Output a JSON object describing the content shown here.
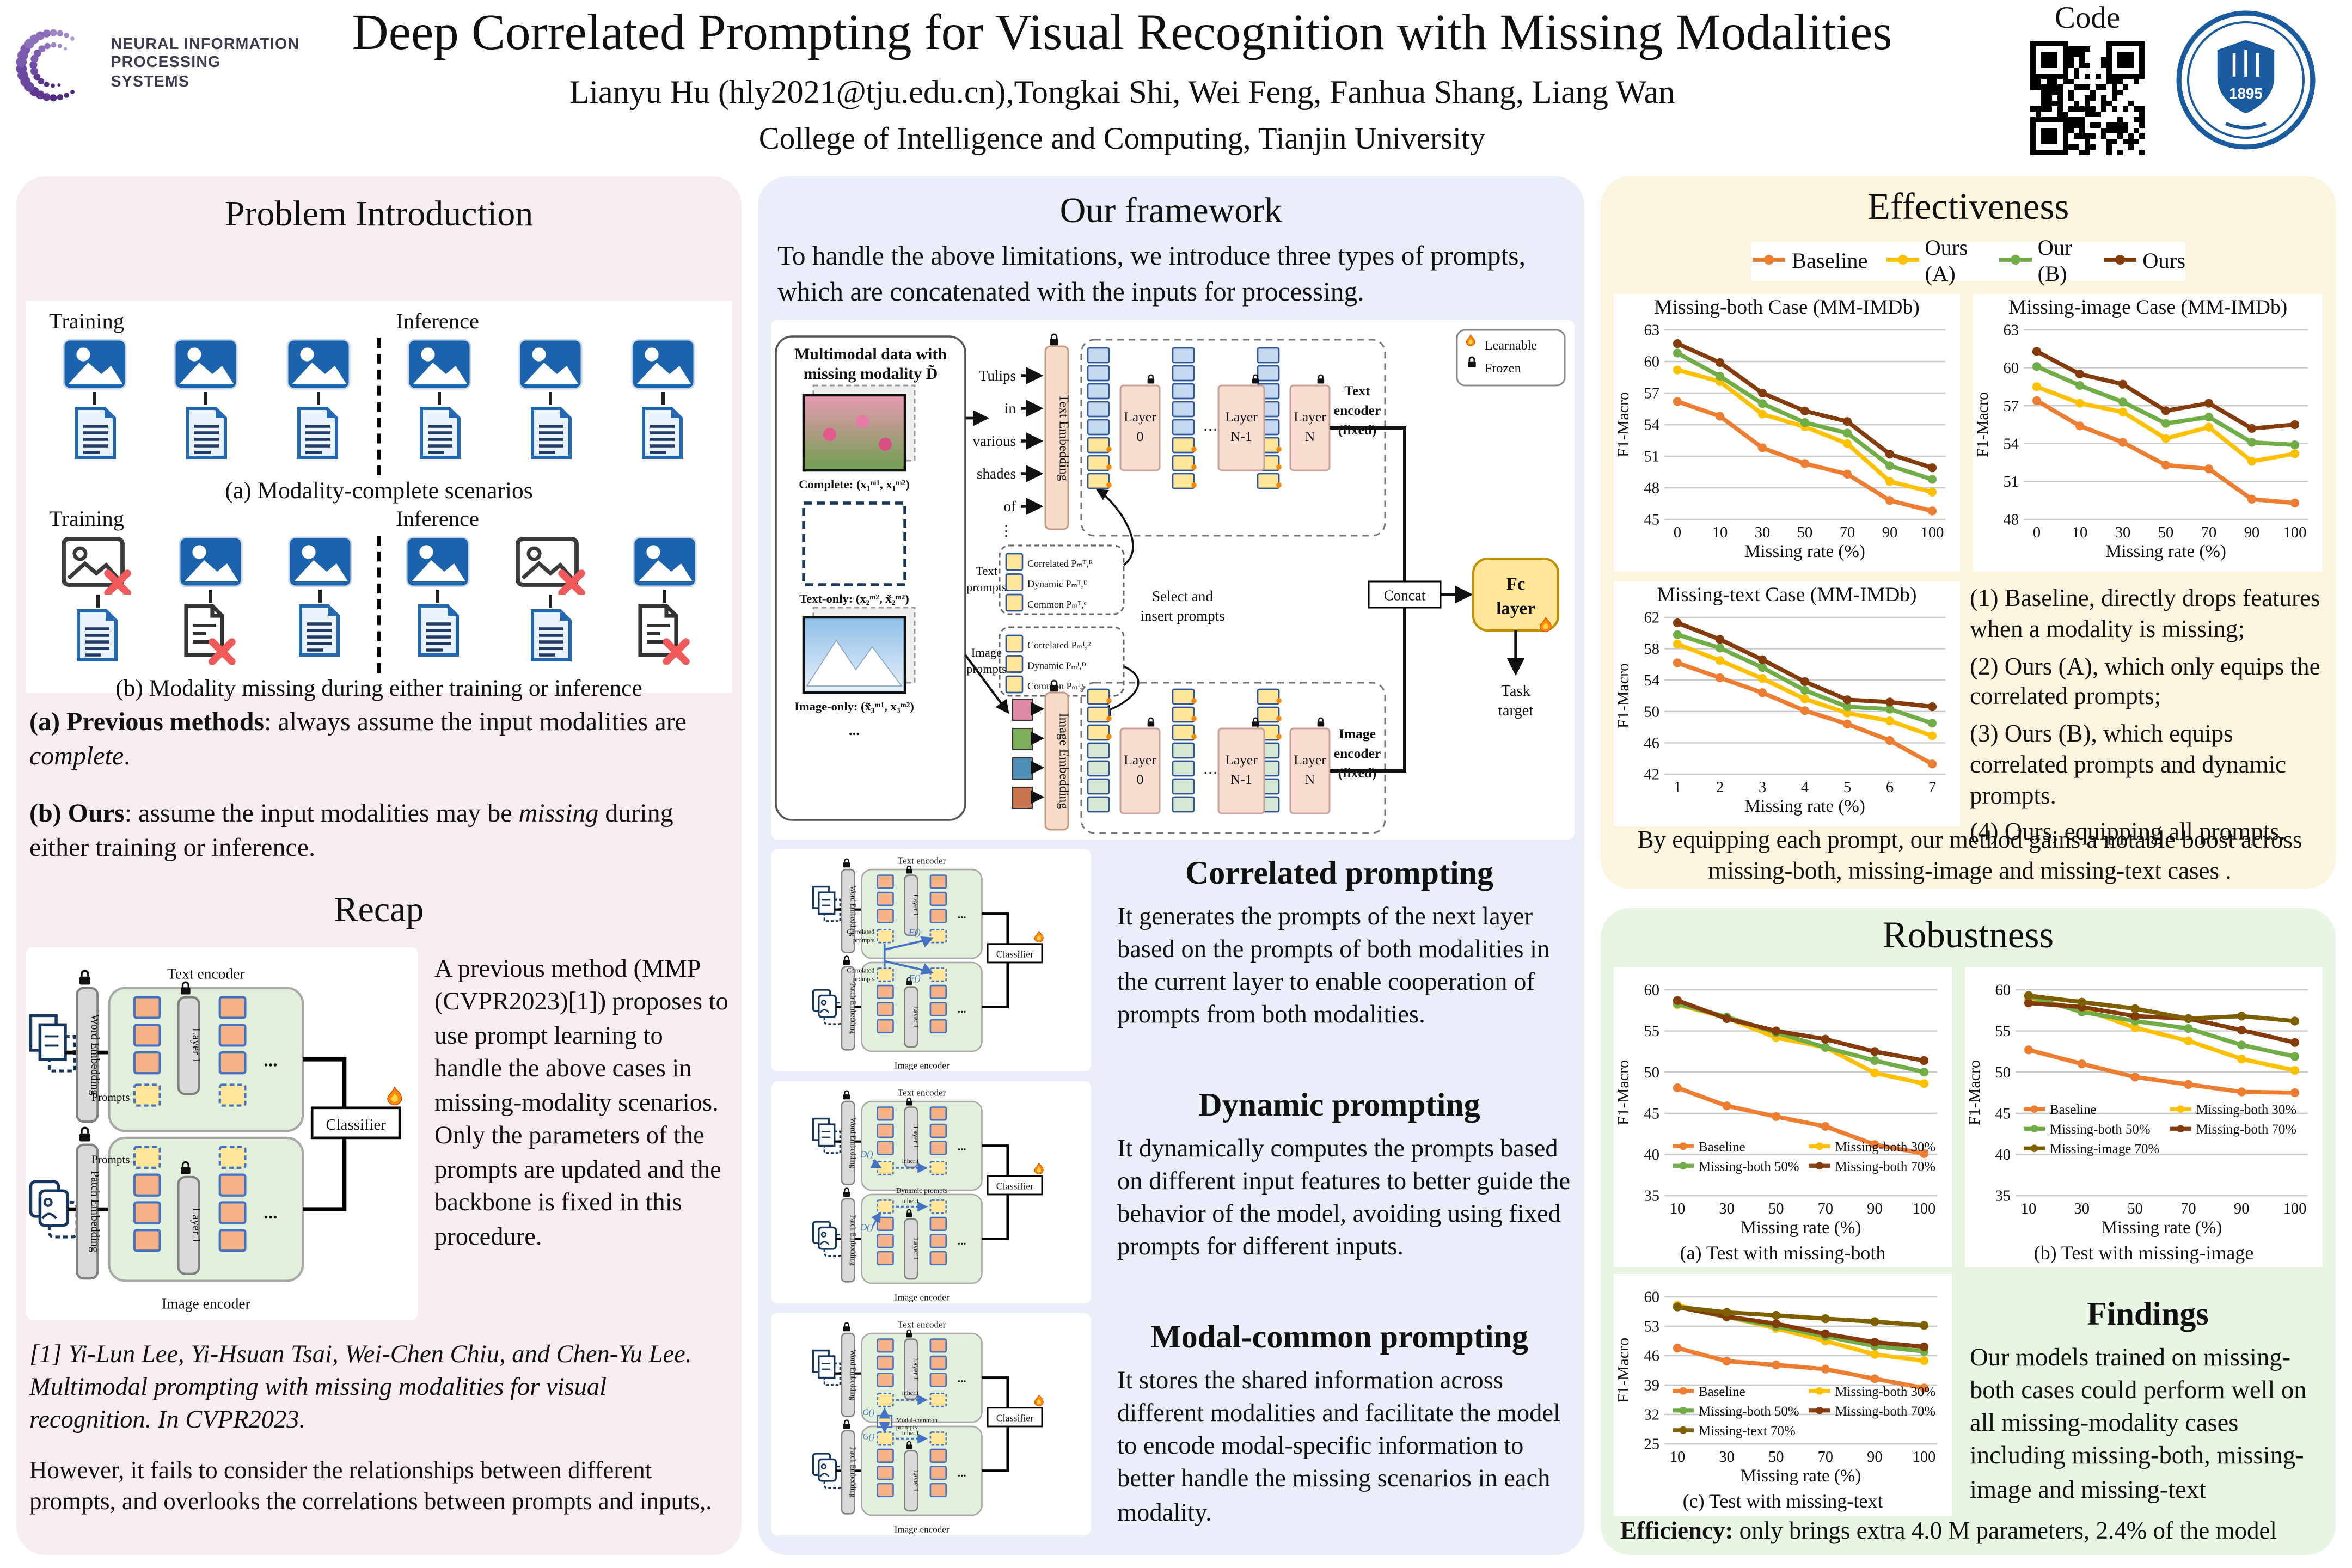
{
  "header": {
    "conference_logo": {
      "line1": "NEURAL INFORMATION",
      "line2": "PROCESSING SYSTEMS"
    },
    "title": "Deep Correlated Prompting for Visual Recognition with Missing Modalities",
    "authors": "Lianyu Hu (hly2021@tju.edu.cn),Tongkai Shi, Wei Feng, Fanhua Shang, Liang Wan",
    "affiliation": "College of Intelligence and Computing, Tianjin University",
    "code_label": "Code",
    "seal_year": "1895"
  },
  "problem_intro": {
    "title": "Problem Introduction",
    "scenarios": [
      {
        "training_label": "Training",
        "inference_label": "Inference",
        "training": [
          {
            "image": "ok",
            "text": "ok"
          },
          {
            "image": "ok",
            "text": "ok"
          },
          {
            "image": "ok",
            "text": "ok"
          }
        ],
        "inference": [
          {
            "image": "ok",
            "text": "ok"
          },
          {
            "image": "ok",
            "text": "ok"
          },
          {
            "image": "ok",
            "text": "ok"
          }
        ],
        "caption": "(a) Modality-complete scenarios"
      },
      {
        "training_label": "Training",
        "inference_label": "Inference",
        "training": [
          {
            "image": "missing",
            "text": "ok"
          },
          {
            "image": "ok",
            "text": "missing"
          },
          {
            "image": "ok",
            "text": "ok"
          }
        ],
        "inference": [
          {
            "image": "ok",
            "text": "ok"
          },
          {
            "image": "missing",
            "text": "ok"
          },
          {
            "image": "ok",
            "text": "missing"
          }
        ],
        "caption": "(b) Modality missing during either training or inference"
      }
    ],
    "point_a": {
      "bold": "(a) Previous methods",
      "mid": ": always assume the input modalities are ",
      "italic": "complete",
      "end": "."
    },
    "point_b": {
      "bold": "(b) Ours",
      "mid": ": assume the input modalities may be ",
      "italic": "missing",
      "end": " during either training or inference."
    },
    "recap_title": "Recap",
    "recap_text": "A previous method (MMP (CVPR2023)[1]) proposes to use prompt learning to handle the above cases in missing-modality scenarios. Only the parameters of the prompts are updated and the backbone is fixed in this procedure.",
    "reference": "[1] Yi-Lun Lee, Yi-Hsuan Tsai, Wei-Chen Chiu, and Chen-Yu Lee. Multimodal prompting with missing modalities for visual recognition. In CVPR2023.",
    "however": "However, it fails to consider the relationships between different prompts, and overlooks the correlations between prompts and inputs,."
  },
  "framework": {
    "title": "Our framework",
    "intro": "To handle the above limitations, we introduce three types of prompts, which are concatenated with the inputs for processing.",
    "diagram": {
      "multimodal_1": "Multimodal data with",
      "multimodal_2": "missing modality D̃",
      "complete": "Complete: (x₁ᵐ¹, x₁ᵐ²)",
      "text_only": "Text-only: (x₂ᵐ², x̃₂ᵐ²)",
      "image_only": "Image-only: (x̃₃ᵐ¹, x₃ᵐ²)",
      "dots": "...",
      "vdots": "⋮",
      "words": [
        "Tulips",
        "in",
        "various",
        "shades",
        "of"
      ],
      "text_embedding": "Text Embedding",
      "image_embedding": "Image Embedding",
      "layer_word": "Layer",
      "layer0": "0",
      "layerN1": "N-1",
      "layerN": "N",
      "text_enc": [
        "Text",
        "encoder",
        "(fixed)"
      ],
      "image_enc": [
        "Image",
        "encoder",
        "(fixed)"
      ],
      "text_prompts": [
        "Text",
        "prompts"
      ],
      "image_prompts": [
        "Image",
        "prompts"
      ],
      "prompt_rows_text": [
        "Correlated Pₘᵀ,ᴿ",
        "Dynamic Pₘᵀ,ᴰ",
        "Common Pₘᵀ,ᶜ"
      ],
      "prompt_rows_image": [
        "Correlated Pₘᴵ,ᴿ",
        "Dynamic Pₘᴵ,ᴰ",
        "Common Pₘᴵ,ᶜ"
      ],
      "select_1": "Select and",
      "select_2": "insert prompts",
      "concat": "Concat",
      "fc1": "Fc",
      "fc2": "layer",
      "task1": "Task",
      "task2": "target",
      "learnable": "Learnable",
      "frozen": "Frozen"
    },
    "mini": {
      "text_encoder": "Text encoder",
      "image_encoder": "Image encoder",
      "word_embedding": "Word Embedding",
      "patch_embedding": "Patch Embedding",
      "layer1": "Layer 1",
      "classifier": "Classifier",
      "prompts": "Prompts",
      "correlated_1": "Correlated",
      "correlated_2": "prompts",
      "dynamic_label": "Dynamic prompts",
      "common_1": "Modal-common",
      "common_2": "prompts",
      "inherit": "inherit",
      "f_fn": "F()",
      "d_fn": "D()",
      "g_fn": "G()",
      "dots": "..."
    },
    "sections": [
      {
        "heading": "Correlated prompting",
        "body": "It generates the prompts of the next layer based on the prompts of both modalities in the current layer to enable cooperation of prompts from both modalities."
      },
      {
        "heading": "Dynamic prompting",
        "body": "It dynamically computes the prompts based on different input features to better guide the behavior of the model, avoiding using fixed prompts for different inputs."
      },
      {
        "heading": "Modal-common prompting",
        "body": "It stores the shared information across different modalities and facilitate the model to encode modal-specific information to better handle the missing scenarios in each modality."
      }
    ]
  },
  "effectiveness": {
    "title": "Effectiveness",
    "legend": [
      {
        "label": "Baseline",
        "color": "#ED7D31"
      },
      {
        "label": "Ours (A)",
        "color": "#FFC000"
      },
      {
        "label": "Our (B)",
        "color": "#70AD47"
      },
      {
        "label": "Ours",
        "color": "#843C0C"
      }
    ],
    "notes": [
      "(1)  Baseline, directly drops features when a modality is missing;",
      "(2) Ours (A), which only equips the correlated prompts;",
      "(3) Ours (B), which equips correlated prompts and dynamic prompts.",
      "(4) Ours, equipping all prompts."
    ],
    "summary": "By equipping each prompt, our method gains a notable boost across missing-both, missing-image and missing-text cases ."
  },
  "robustness": {
    "title": "Robustness",
    "findings_title": "Findings",
    "findings": "Our models trained on missing-both cases could perform well on all missing-modality cases including missing-both, missing-image and missing-text",
    "efficiency_bold": "Efficiency:",
    "efficiency_rest": " only brings extra 4.0 M parameters, 2.4% of the model"
  },
  "chart_data": [
    {
      "key": "missing_both",
      "type": "line",
      "title": "Missing-both Case (MM-IMDb)",
      "xlabel": "Missing rate (%)",
      "ylabel": "F1-Macro",
      "x": [
        0,
        10,
        30,
        50,
        70,
        90,
        100
      ],
      "ylim": [
        45,
        63
      ],
      "yticks": [
        45,
        48,
        51,
        54,
        57,
        60,
        63
      ],
      "series": [
        {
          "name": "Baseline",
          "color": "#ED7D31",
          "values": [
            56.2,
            54.8,
            51.8,
            50.3,
            49.3,
            46.8,
            45.8
          ]
        },
        {
          "name": "Ours (A)",
          "color": "#FFC000",
          "values": [
            59.2,
            58.1,
            55.0,
            53.8,
            52.2,
            48.6,
            47.6
          ]
        },
        {
          "name": "Our (B)",
          "color": "#70AD47",
          "values": [
            60.8,
            58.6,
            56.0,
            54.2,
            53.2,
            50.1,
            48.8
          ]
        },
        {
          "name": "Ours",
          "color": "#843C0C",
          "values": [
            61.7,
            59.9,
            57.0,
            55.3,
            54.3,
            51.2,
            49.9
          ]
        }
      ]
    },
    {
      "key": "missing_image",
      "type": "line",
      "title": "Missing-image Case (MM-IMDb)",
      "xlabel": "Missing rate (%)",
      "ylabel": "F1-Macro",
      "x": [
        0,
        10,
        30,
        50,
        70,
        90,
        100
      ],
      "ylim": [
        48,
        63
      ],
      "yticks": [
        48,
        51,
        54,
        57,
        60,
        63
      ],
      "series": [
        {
          "name": "Baseline",
          "color": "#ED7D31",
          "values": [
            57.4,
            55.4,
            54.1,
            52.3,
            52.0,
            49.6,
            49.3
          ]
        },
        {
          "name": "Ours (A)",
          "color": "#FFC000",
          "values": [
            58.5,
            57.2,
            56.5,
            54.4,
            55.3,
            52.6,
            53.2
          ]
        },
        {
          "name": "Our (B)",
          "color": "#70AD47",
          "values": [
            60.1,
            58.6,
            57.3,
            55.6,
            56.1,
            54.1,
            53.9
          ]
        },
        {
          "name": "Ours",
          "color": "#843C0C",
          "values": [
            61.3,
            59.5,
            58.7,
            56.6,
            57.2,
            55.2,
            55.5
          ]
        }
      ]
    },
    {
      "key": "missing_text",
      "type": "line",
      "title": "Missing-text Case (MM-IMDb)",
      "xlabel": "Missing rate (%)",
      "ylabel": "F1-Macro",
      "x": [
        1,
        2,
        3,
        4,
        5,
        6,
        7
      ],
      "ylim": [
        42,
        62
      ],
      "yticks": [
        42,
        46,
        50,
        54,
        58,
        62
      ],
      "series": [
        {
          "name": "Baseline",
          "color": "#ED7D31",
          "values": [
            56.2,
            54.3,
            52.4,
            50.1,
            48.4,
            46.3,
            43.3
          ]
        },
        {
          "name": "Ours (A)",
          "color": "#FFC000",
          "values": [
            58.6,
            56.5,
            54.2,
            51.6,
            49.8,
            48.8,
            46.9
          ]
        },
        {
          "name": "Our (B)",
          "color": "#70AD47",
          "values": [
            59.8,
            58.1,
            55.6,
            52.7,
            50.6,
            50.3,
            48.5
          ]
        },
        {
          "name": "Ours",
          "color": "#843C0C",
          "values": [
            61.3,
            59.2,
            56.6,
            53.8,
            51.5,
            51.2,
            50.6
          ]
        }
      ]
    },
    {
      "key": "robust_missing_both",
      "type": "line",
      "caption": "(a) Test with missing-both",
      "xlabel": "Missing rate (%)",
      "ylabel": "F1-Macro",
      "legend": "inside",
      "legend_y": 0.76,
      "x": [
        10,
        30,
        50,
        70,
        90,
        100
      ],
      "ylim": [
        35,
        60
      ],
      "yticks": [
        35,
        40,
        45,
        50,
        55,
        60
      ],
      "series": [
        {
          "name": "Baseline",
          "color": "#ED7D31",
          "values": [
            48.1,
            45.9,
            44.6,
            43.4,
            41.2,
            40.1
          ]
        },
        {
          "name": "Missing-both 30%",
          "color": "#FFC000",
          "values": [
            58.2,
            56.6,
            54.2,
            53.0,
            49.9,
            48.6
          ]
        },
        {
          "name": "Missing-both 50%",
          "color": "#70AD47",
          "values": [
            58.3,
            56.7,
            54.8,
            53.0,
            51.4,
            50.0
          ]
        },
        {
          "name": "Missing-both 70%",
          "color": "#843C0C",
          "values": [
            58.7,
            56.5,
            55.0,
            54.0,
            52.5,
            51.4
          ]
        }
      ]
    },
    {
      "key": "robust_missing_image",
      "type": "line",
      "caption": "(b) Test with missing-image",
      "xlabel": "Missing rate (%)",
      "ylabel": "F1-Macro",
      "legend": "inside",
      "legend_y": 0.58,
      "x": [
        10,
        30,
        50,
        70,
        90,
        100
      ],
      "ylim": [
        35,
        60
      ],
      "yticks": [
        35,
        40,
        45,
        50,
        55,
        60
      ],
      "series": [
        {
          "name": "Baseline",
          "color": "#ED7D31",
          "values": [
            52.7,
            51.0,
            49.4,
            48.5,
            47.6,
            47.5
          ]
        },
        {
          "name": "Missing-both 30%",
          "color": "#FFC000",
          "values": [
            58.8,
            57.7,
            55.4,
            53.8,
            51.6,
            50.2
          ]
        },
        {
          "name": "Missing-both 50%",
          "color": "#70AD47",
          "values": [
            59.2,
            57.3,
            56.2,
            55.3,
            53.3,
            51.9
          ]
        },
        {
          "name": "Missing-both 70%",
          "color": "#843C0C",
          "values": [
            58.4,
            57.9,
            56.8,
            56.5,
            55.1,
            53.6
          ]
        },
        {
          "name": "Missing-image 70%",
          "color": "#7F6000",
          "values": [
            59.3,
            58.5,
            57.7,
            56.5,
            56.8,
            56.2
          ]
        }
      ]
    },
    {
      "key": "robust_missing_text",
      "type": "line",
      "caption": "(c) Test with missing-text",
      "xlabel": "Missing rate (%)",
      "ylabel": "F1-Macro",
      "legend": "inside",
      "legend_y": 0.64,
      "x": [
        10,
        30,
        50,
        70,
        90,
        100
      ],
      "ylim": [
        25,
        60
      ],
      "yticks": [
        25,
        32,
        39,
        46,
        53,
        60
      ],
      "series": [
        {
          "name": "Baseline",
          "color": "#ED7D31",
          "values": [
            47.8,
            44.7,
            43.8,
            42.8,
            40.5,
            38.3
          ]
        },
        {
          "name": "Missing-both 30%",
          "color": "#FFC000",
          "values": [
            58.0,
            55.3,
            52.5,
            49.5,
            46.3,
            44.8
          ]
        },
        {
          "name": "Missing-both 50%",
          "color": "#70AD47",
          "values": [
            57.6,
            55.2,
            53.0,
            50.6,
            48.3,
            47.0
          ]
        },
        {
          "name": "Missing-both 70%",
          "color": "#843C0C",
          "values": [
            57.6,
            55.3,
            53.6,
            51.2,
            49.2,
            48.1
          ]
        },
        {
          "name": "Missing-text 70%",
          "color": "#7F6000",
          "values": [
            57.6,
            56.3,
            55.6,
            54.8,
            54.1,
            53.2
          ]
        }
      ]
    }
  ]
}
